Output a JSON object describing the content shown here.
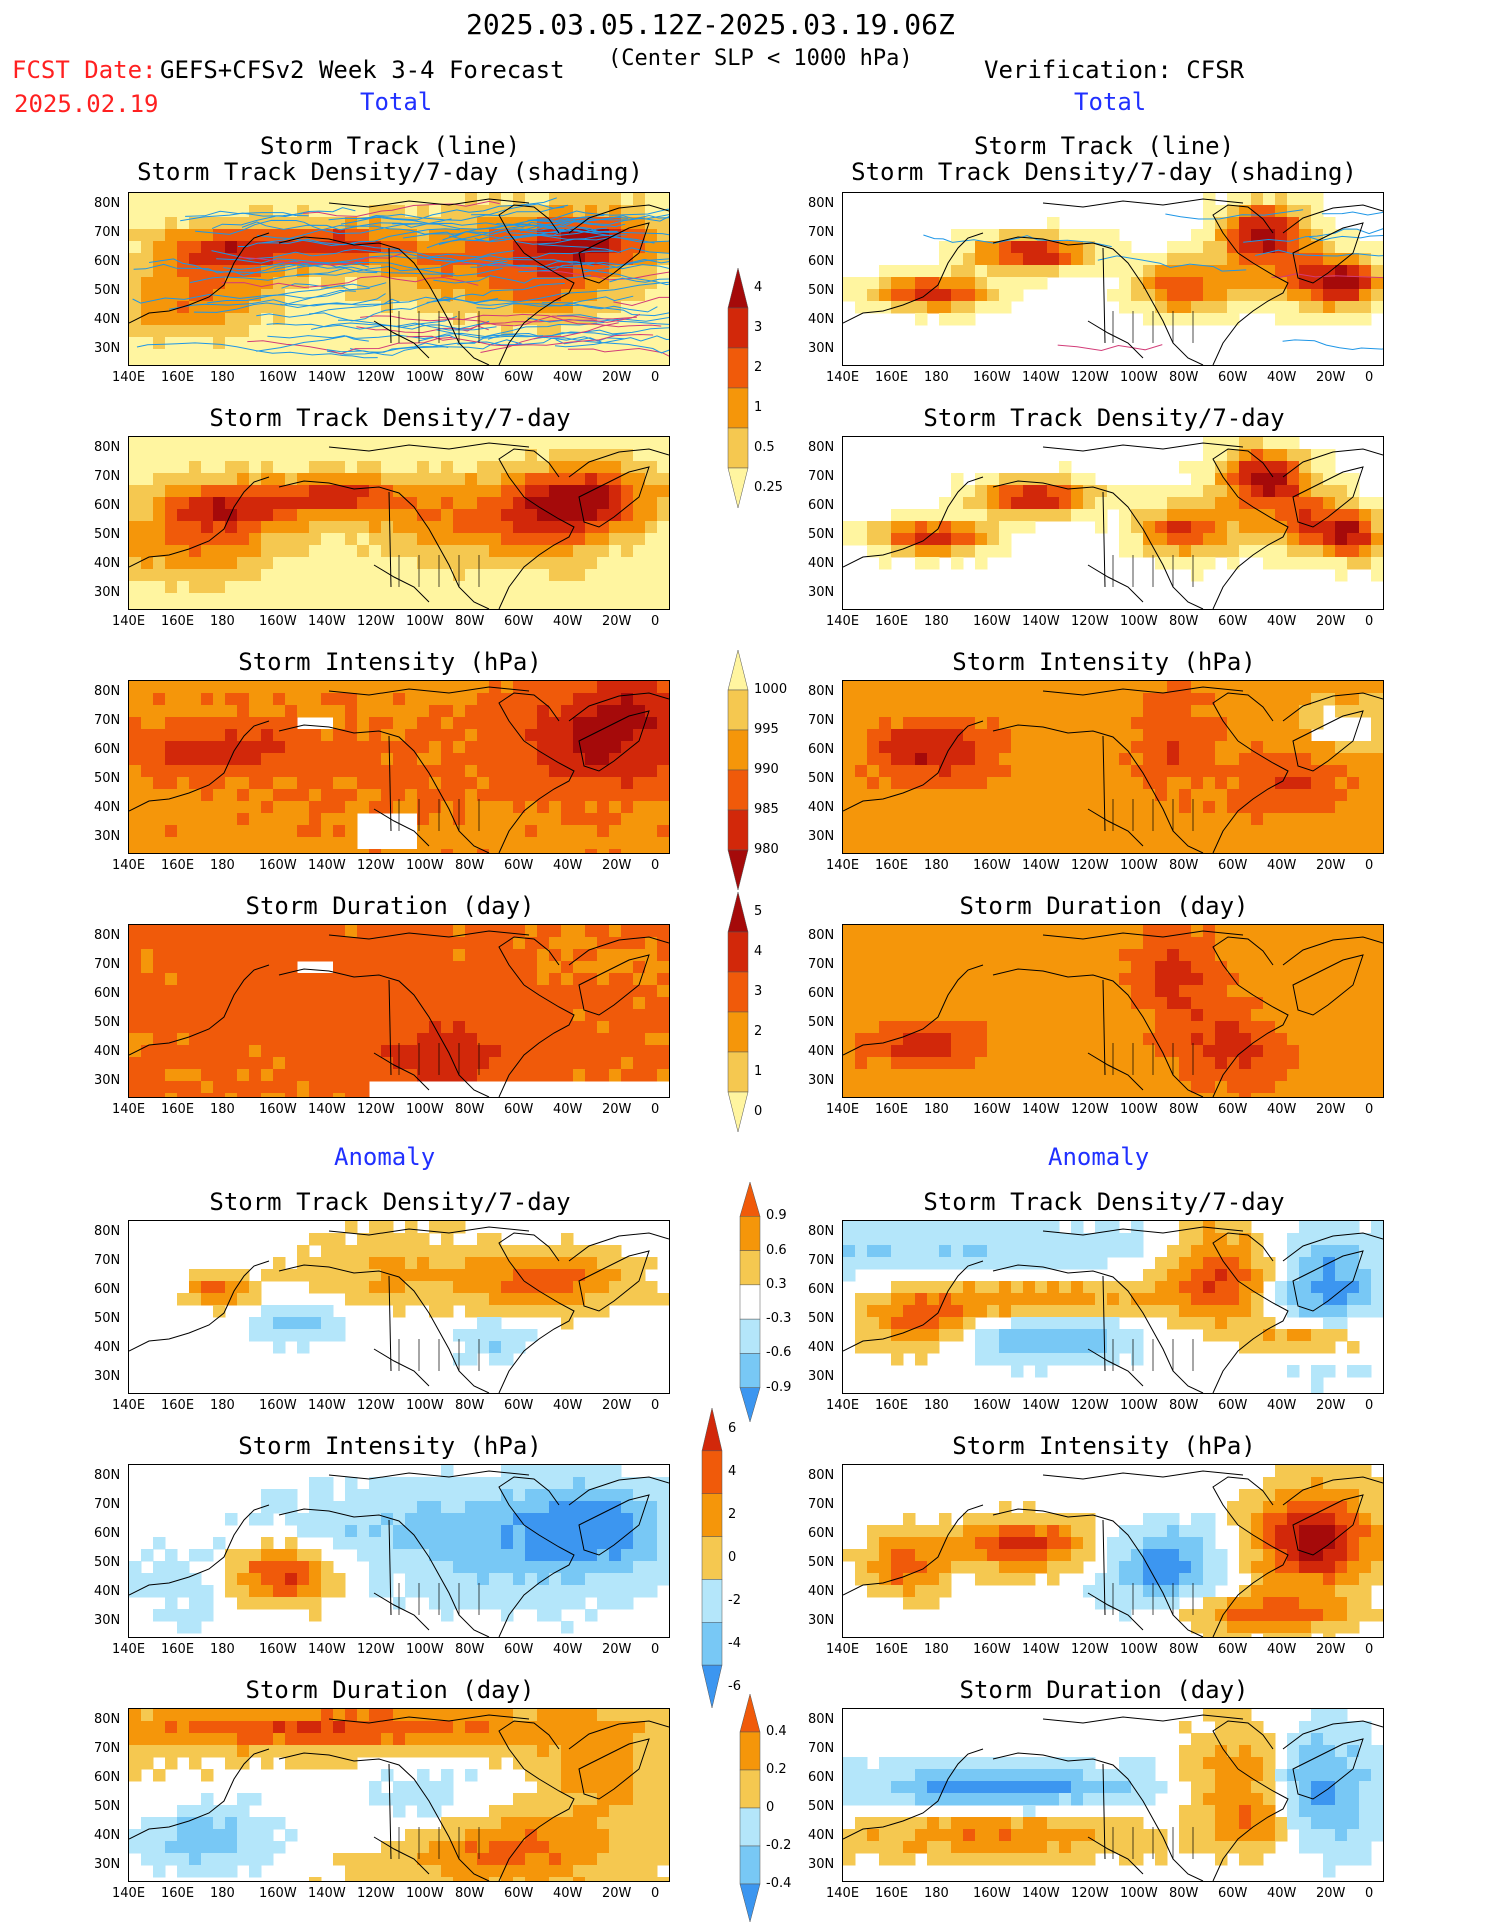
{
  "header": {
    "period": "2025.03.05.12Z-2025.03.19.06Z",
    "fcst_date_label": "FCST Date:",
    "fcst_date_value": "2025.02.19",
    "forecast_model": "GEFS+CFSv2 Week 3-4 Forecast",
    "criterion": "(Center SLP < 1000 hPa)",
    "verification": "Verification: CFSR"
  },
  "sections": {
    "total_left": "Total",
    "total_right": "Total",
    "anomaly_left": "Anomaly",
    "anomaly_right": "Anomaly"
  },
  "panel_titles": {
    "track_line": "Storm Track (line)",
    "track_density_shading": "Storm Track Density/7-day (shading)",
    "track_density": "Storm Track Density/7-day",
    "intensity": "Storm Intensity (hPa)",
    "duration": "Storm Duration (day)"
  },
  "axes": {
    "lat_labels": [
      "80N",
      "70N",
      "60N",
      "50N",
      "40N",
      "30N"
    ],
    "lon_labels": [
      "140E",
      "160E",
      "180",
      "160W",
      "140W",
      "120W",
      "100W",
      "80W",
      "60W",
      "40W",
      "20W",
      "0"
    ]
  },
  "colorbars": {
    "density_total": {
      "labels": [
        "4",
        "3",
        "2",
        "1",
        "0.5",
        "0.25"
      ],
      "colors": [
        "#a50a0a",
        "#d2280a",
        "#f05a0a",
        "#f5960a",
        "#f5c850",
        "#fff5a0"
      ]
    },
    "intensity_total": {
      "labels": [
        "1000",
        "995",
        "990",
        "985",
        "980"
      ],
      "colors": [
        "#fff5a0",
        "#f5c850",
        "#f5960a",
        "#f05a0a",
        "#d2280a",
        "#a50a0a"
      ]
    },
    "duration_total": {
      "labels": [
        "5",
        "4",
        "3",
        "2",
        "1",
        "0"
      ],
      "colors": [
        "#a50a0a",
        "#d2280a",
        "#f05a0a",
        "#f5960a",
        "#f5c850",
        "#fff5a0"
      ]
    },
    "density_anom": {
      "labels": [
        "0.9",
        "0.6",
        "0.3",
        "-0.3",
        "-0.6",
        "-0.9"
      ],
      "colors": [
        "#f05a0a",
        "#f5960a",
        "#f5c850",
        "#ffffff",
        "#b4e6fa",
        "#78c8f5",
        "#3c96f0"
      ]
    },
    "intensity_anom": {
      "labels": [
        "6",
        "4",
        "2",
        "0",
        "-2",
        "-4",
        "-6"
      ],
      "colors": [
        "#d2280a",
        "#f05a0a",
        "#f5960a",
        "#f5c850",
        "#b4e6fa",
        "#78c8f5",
        "#3c96f0"
      ]
    },
    "duration_anom": {
      "labels": [
        "0.4",
        "0.2",
        "0",
        "-0.2",
        "-0.4"
      ],
      "colors": [
        "#f05a0a",
        "#f5960a",
        "#f5c850",
        "#b4e6fa",
        "#78c8f5",
        "#3c96f0"
      ]
    }
  }
}
